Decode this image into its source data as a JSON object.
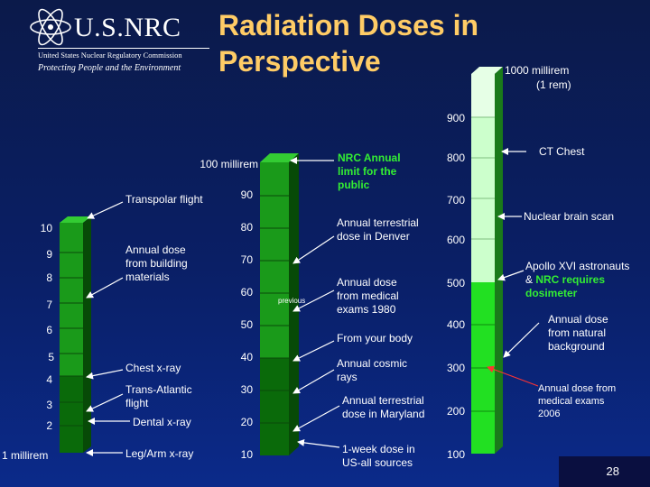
{
  "logo": {
    "name": "U.S.NRC",
    "subtitle": "United States Nuclear Regulatory Commission",
    "tagline": "Protecting People and the Environment"
  },
  "title": "Radiation Doses in Perspective",
  "page_number": "28",
  "colors": {
    "title": "#ffcc66",
    "bar_dark": "#0a6a0a",
    "bar_mid": "#1a9a1a",
    "bar_light": "#33ee33",
    "bar_pale": "#ccffcc",
    "callout_green": "#33ee33",
    "arrow_red": "#ff3333"
  },
  "columns": {
    "left": {
      "top_label": "",
      "bottom_label": "1 millirem",
      "ticks": [
        "10",
        "9",
        "8",
        "7",
        "6",
        "5",
        "4",
        "3",
        "2"
      ],
      "annotations": [
        {
          "text": "Transpolar flight"
        },
        {
          "text": "Annual dose from building materials"
        },
        {
          "text": "Chest x-ray"
        },
        {
          "text": "Trans-Atlantic flight"
        },
        {
          "text": "Dental x-ray"
        },
        {
          "text": "Leg/Arm x-ray"
        }
      ]
    },
    "middle": {
      "top_label": "100 millirem",
      "ticks": [
        "90",
        "80",
        "70",
        "60",
        "50",
        "40",
        "30",
        "20",
        "10"
      ],
      "inner_label": "previous",
      "annotations": [
        {
          "text": "NRC Annual limit for the public",
          "highlight": true
        },
        {
          "text": "Annual terrestrial dose in Denver"
        },
        {
          "text": "Annual dose from medical exams 1980"
        },
        {
          "text": "From your body"
        },
        {
          "text": "Annual cosmic rays"
        },
        {
          "text": "Annual terrestrial dose in Maryland"
        },
        {
          "text": "1-week dose in US-all sources"
        }
      ]
    },
    "right": {
      "top_label_line1": "1000 millirem",
      "top_label_line2": "(1 rem)",
      "ticks": [
        "900",
        "800",
        "700",
        "600",
        "500",
        "400",
        "300",
        "200",
        "100"
      ],
      "annotations": [
        {
          "text": "CT Chest"
        },
        {
          "text": "Nuclear brain scan"
        },
        {
          "text_prefix": "Apollo XVI astronauts",
          "text_amp": "& ",
          "text_highlight": "NRC requires dosimeter"
        },
        {
          "text": "Annual dose from natural background"
        },
        {
          "text": "Annual dose from medical exams 2006",
          "small": true
        }
      ]
    }
  }
}
